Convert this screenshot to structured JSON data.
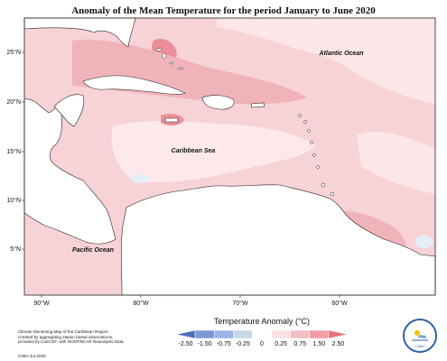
{
  "title": "Anomaly of the Mean Temperature for the period January to June 2020",
  "map_labels": {
    "atlantic": "Atlantic Ocean",
    "caribbean": "Caribbean Sea",
    "pacific": "Pacific Ocean"
  },
  "axes": {
    "lat_ticks": [
      "25°N",
      "20°N",
      "15°N",
      "10°N",
      "5°N"
    ],
    "lon_ticks": [
      "90°W",
      "80°W",
      "70°W",
      "60°W"
    ]
  },
  "legend": {
    "title": "Temperature Anomaly (°C)",
    "labels": [
      "-2.50",
      "-1.50",
      "-0.75",
      "-0.25",
      "0",
      "0.25",
      "0.75",
      "1.50",
      "2.50"
    ],
    "colors": [
      "#4b6fbf",
      "#7d97d6",
      "#9db4e6",
      "#c8d6ea",
      "#ffffff",
      "#fbe0e2",
      "#f4bfc3",
      "#ee9ea4",
      "#e8717b"
    ]
  },
  "colors": {
    "land": "#ffffff",
    "anomaly_light": "#fbe6e8",
    "anomaly_medium": "#f7d2d6",
    "anomaly_strong": "#f0b3b9",
    "anomaly_hot": "#ea8f98",
    "anomaly_cool": "#e4eef6"
  },
  "credits": [
    "Climate Monitoring Map of the Caribbean Region.",
    "Created by aggregating station based observations,",
    "provided by CariCOF, with NCEP/NCAR Reanalysis Data."
  ],
  "footer": "CIMH  Jul-2020",
  "logo_text": "CIMH"
}
